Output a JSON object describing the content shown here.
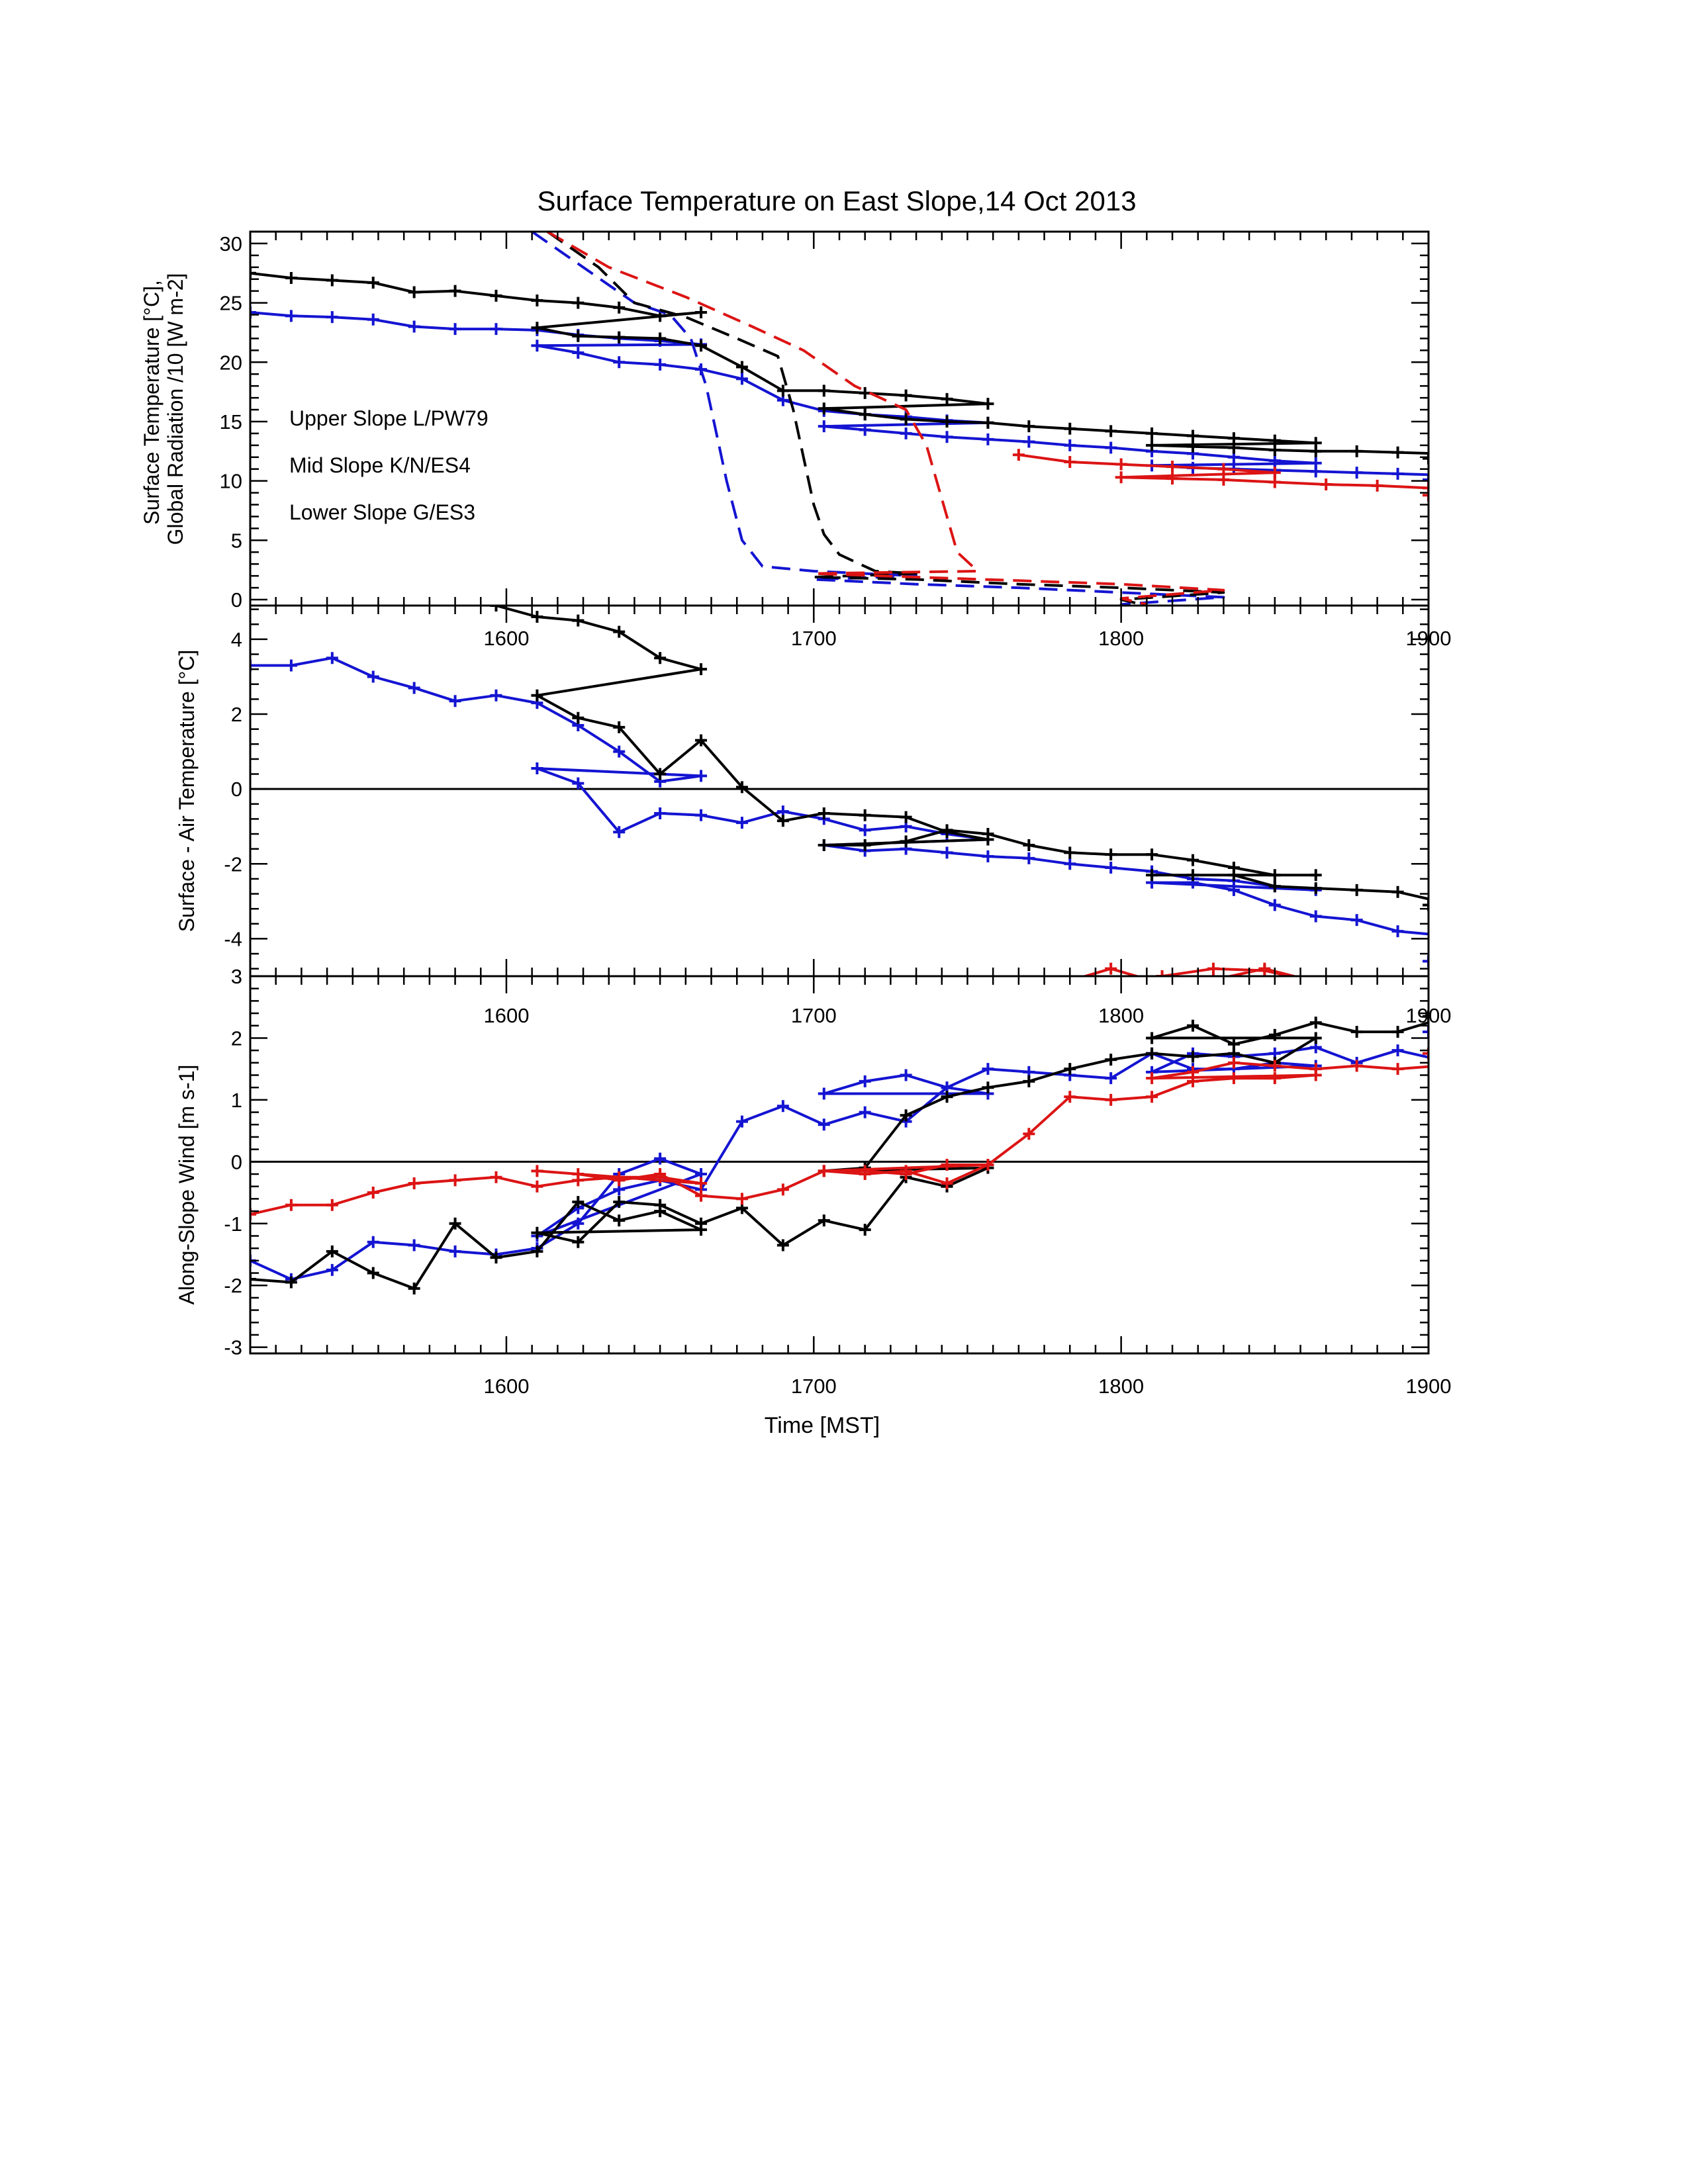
{
  "title": "Surface Temperature on East Slope,14 Oct 2013",
  "colors": {
    "upper": "#1414d2",
    "mid": "#000000",
    "lower": "#dc1414",
    "axis": "#000000"
  },
  "legend": {
    "placement": "left, middle of top panel",
    "items": [
      {
        "key": "upper",
        "label": "Upper Slope L/PW79"
      },
      {
        "key": "mid",
        "label": "Mid Slope K/N/ES4"
      },
      {
        "key": "lower",
        "label": "Lower Slope G/ES3"
      }
    ]
  },
  "xaxis": {
    "label": "Time [MST]",
    "ticks": [
      "1600",
      "1700",
      "1800",
      "1900"
    ]
  },
  "chart_data": [
    {
      "type": "line",
      "panel": "top",
      "ylabel_line1": "Surface Temperature [°C],",
      "ylabel_line2": "Global Radiation /10 [W m-2]",
      "xlim": [
        1510,
        1900
      ],
      "ylim": [
        -0.5,
        31
      ],
      "yticks": [
        "0",
        "5",
        "10",
        "15",
        "20",
        "25",
        "30"
      ],
      "minutes_decimal_note_omitted": true,
      "series": [
        {
          "key": "upper",
          "style": "solid",
          "x": [
            1510,
            1518,
            1526,
            1534,
            1542,
            1550,
            1558,
            1566,
            1574,
            1582,
            1590,
            1598,
            1606,
            1614,
            1622,
            1630,
            1638,
            1646,
            1654,
            1662,
            1670,
            1678,
            1686,
            1694,
            1702,
            1710,
            1718,
            1726,
            1734,
            1742,
            1750,
            1758,
            1766,
            1774,
            1782,
            1790,
            1798,
            1806,
            1814,
            1822,
            1830,
            1838,
            1846,
            1854,
            1862,
            1870,
            1878,
            1886,
            1894,
            1900
          ],
          "y": [
            24.2,
            23.9,
            23.8,
            23.6,
            23.0,
            22.8,
            22.8,
            22.7,
            22.3,
            22.0,
            21.8,
            21.5,
            21.4,
            20.8,
            20.0,
            19.8,
            19.4,
            18.6,
            16.8,
            15.9,
            15.6,
            15.4,
            15.1,
            14.9,
            14.6,
            14.3,
            14.0,
            13.7,
            13.5,
            13.3,
            13.0,
            12.8,
            12.5,
            12.3,
            12.0,
            11.7,
            11.5,
            11.3,
            11.1,
            11.0,
            10.9,
            10.8,
            10.7,
            10.6,
            10.5,
            10.4,
            10.3,
            10.2,
            10.1,
            10.1
          ]
        },
        {
          "key": "mid",
          "style": "solid",
          "x": [
            1510,
            1518,
            1526,
            1534,
            1542,
            1550,
            1558,
            1566,
            1574,
            1582,
            1590,
            1598,
            1606,
            1614,
            1622,
            1630,
            1638,
            1646,
            1654,
            1662,
            1670,
            1678,
            1686,
            1694,
            1702,
            1710,
            1718,
            1726,
            1734,
            1742,
            1750,
            1758,
            1766,
            1774,
            1782,
            1790,
            1798,
            1806,
            1814,
            1822,
            1830,
            1838,
            1846,
            1854,
            1862,
            1870,
            1878,
            1886,
            1894,
            1900
          ],
          "y": [
            27.5,
            27.1,
            26.9,
            26.7,
            25.9,
            26.0,
            25.6,
            25.2,
            25.0,
            24.6,
            23.9,
            24.2,
            22.9,
            22.2,
            22.1,
            22.0,
            21.4,
            19.6,
            17.6,
            17.6,
            17.4,
            17.2,
            16.9,
            16.5,
            16.1,
            15.6,
            15.2,
            15.0,
            14.9,
            14.6,
            14.4,
            14.2,
            14.0,
            13.8,
            13.6,
            13.4,
            13.2,
            13.0,
            12.9,
            12.8,
            12.6,
            12.5,
            12.5,
            12.4,
            12.3,
            12.2,
            12.1,
            12.0,
            11.9,
            11.9
          ]
        },
        {
          "key": "lower",
          "style": "solid",
          "x": [
            1740,
            1750,
            1760,
            1770,
            1780,
            1790,
            1800,
            1810,
            1820,
            1830,
            1840,
            1850,
            1860,
            1870,
            1880,
            1890,
            1900
          ],
          "y": [
            12.2,
            11.6,
            11.4,
            11.2,
            11.0,
            10.7,
            10.3,
            10.2,
            10.1,
            9.9,
            9.7,
            9.6,
            9.4,
            9.3,
            9.2,
            9.0,
            8.8
          ]
        },
        {
          "key": "upper",
          "style": "dashed",
          "x": [
            1605,
            1615,
            1625,
            1632,
            1636,
            1639,
            1641,
            1643,
            1646,
            1650,
            1660,
            1680,
            1700,
            1720,
            1740,
            1760,
            1780,
            1800,
            1805
          ],
          "y": [
            31,
            28,
            25,
            24,
            22,
            18,
            14,
            10,
            5,
            2.8,
            2.4,
            2.0,
            1.7,
            1.3,
            1.0,
            0.6,
            0.2,
            -0.4,
            -0.6
          ]
        },
        {
          "key": "mid",
          "style": "dashed",
          "x": [
            1608,
            1618,
            1625,
            1635,
            1645,
            1653,
            1656,
            1658,
            1660,
            1662,
            1665,
            1672,
            1680,
            1700,
            1720,
            1740,
            1760,
            1780,
            1800,
            1805
          ],
          "y": [
            31,
            28,
            25,
            23.8,
            22,
            20.5,
            16,
            12,
            8,
            5.5,
            3.8,
            2.4,
            2.2,
            1.9,
            1.7,
            1.3,
            1.0,
            0.6,
            0,
            -0.5
          ]
        },
        {
          "key": "lower",
          "style": "dashed",
          "x": [
            1608,
            1620,
            1635,
            1648,
            1658,
            1668,
            1678,
            1682,
            1684,
            1686,
            1688,
            1692,
            1700,
            1720,
            1740,
            1760,
            1780,
            1800,
            1805
          ],
          "y": [
            31,
            28,
            25.5,
            23,
            21,
            18,
            16,
            13,
            10,
            7,
            4,
            2.4,
            2.2,
            1.9,
            1.6,
            1.3,
            0.8,
            0.1,
            -0.4
          ]
        }
      ]
    },
    {
      "type": "line",
      "panel": "middle",
      "ylabel": "Surface - Air Temperature [°C]",
      "xlim": [
        1510,
        1900
      ],
      "ylim": [
        -5,
        4.9
      ],
      "yticks": [
        "-4",
        "-2",
        "0",
        "2",
        "4"
      ],
      "zero_line": true,
      "series": [
        {
          "key": "upper",
          "style": "solid",
          "x": [
            1510,
            1518,
            1526,
            1534,
            1542,
            1550,
            1558,
            1566,
            1574,
            1582,
            1590,
            1598,
            1606,
            1614,
            1622,
            1630,
            1638,
            1646,
            1654,
            1662,
            1670,
            1678,
            1686,
            1694,
            1702,
            1710,
            1718,
            1726,
            1734,
            1742,
            1750,
            1758,
            1766,
            1774,
            1782,
            1790,
            1798,
            1806,
            1814,
            1822,
            1830,
            1838,
            1846,
            1854,
            1862,
            1870,
            1878,
            1886,
            1894,
            1900
          ],
          "y": [
            3.3,
            3.3,
            3.5,
            3.0,
            2.7,
            2.35,
            2.5,
            2.3,
            1.7,
            1.0,
            0.2,
            0.35,
            0.55,
            0.15,
            -1.15,
            -0.65,
            -0.7,
            -0.9,
            -0.6,
            -0.8,
            -1.1,
            -1.0,
            -1.2,
            -1.35,
            -1.5,
            -1.65,
            -1.6,
            -1.7,
            -1.8,
            -1.85,
            -2.0,
            -2.1,
            -2.2,
            -2.4,
            -2.45,
            -2.6,
            -2.7,
            -2.5,
            -2.5,
            -2.7,
            -3.1,
            -3.4,
            -3.5,
            -3.8,
            -3.9,
            -4.1,
            -4.4,
            -4.5,
            -4.6,
            -4.6
          ]
        },
        {
          "key": "mid",
          "style": "solid",
          "x": [
            1548,
            1558,
            1566,
            1574,
            1582,
            1590,
            1598,
            1606,
            1614,
            1622,
            1630,
            1638,
            1646,
            1654,
            1662,
            1670,
            1678,
            1686,
            1694,
            1702,
            1710,
            1718,
            1726,
            1734,
            1742,
            1750,
            1758,
            1766,
            1774,
            1782,
            1790,
            1798,
            1806,
            1814,
            1822,
            1830,
            1838,
            1846,
            1854,
            1862,
            1870,
            1878,
            1886,
            1894,
            1900
          ],
          "y": [
            5.2,
            4.9,
            4.6,
            4.5,
            4.2,
            3.5,
            3.2,
            2.5,
            1.9,
            1.65,
            0.4,
            1.3,
            0.05,
            -0.85,
            -0.65,
            -0.7,
            -0.75,
            -1.15,
            -1.35,
            -1.5,
            -1.5,
            -1.4,
            -1.1,
            -1.2,
            -1.5,
            -1.7,
            -1.75,
            -1.75,
            -1.9,
            -2.1,
            -2.3,
            -2.3,
            -2.3,
            -2.3,
            -2.3,
            -2.6,
            -2.65,
            -2.7,
            -2.75,
            -3.0,
            -2.9,
            -2.9,
            -2.8,
            -3.1,
            -3.1
          ]
        },
        {
          "key": "lower",
          "style": "solid",
          "x": [
            1748,
            1758,
            1768,
            1778,
            1788,
            1798,
            1808,
            1818,
            1828,
            1838
          ],
          "y": [
            -5.2,
            -4.8,
            -5.2,
            -5.1,
            -4.8,
            -5.15,
            -5.0,
            -4.8,
            -4.85,
            -5.15
          ]
        }
      ]
    },
    {
      "type": "line",
      "panel": "bottom",
      "ylabel": "Along-Slope Wind [m s-1]",
      "xlim": [
        1510,
        1900
      ],
      "ylim": [
        -3.1,
        3.0
      ],
      "yticks": [
        "-3",
        "-2",
        "-1",
        "0",
        "1",
        "2",
        "3"
      ],
      "zero_line": true,
      "series": [
        {
          "key": "upper",
          "style": "solid",
          "x": [
            1510,
            1518,
            1526,
            1534,
            1542,
            1550,
            1558,
            1566,
            1574,
            1582,
            1590,
            1598,
            1606,
            1614,
            1622,
            1630,
            1638,
            1646,
            1654,
            1662,
            1670,
            1678,
            1686,
            1694,
            1702,
            1710,
            1718,
            1726,
            1734,
            1742,
            1750,
            1758,
            1766,
            1774,
            1782,
            1790,
            1798,
            1806,
            1814,
            1822,
            1830,
            1838,
            1846,
            1854,
            1862,
            1870,
            1878,
            1886,
            1894,
            1900
          ],
          "y": [
            -1.6,
            -1.9,
            -1.75,
            -1.3,
            -1.35,
            -1.45,
            -1.5,
            -1.4,
            -1.0,
            -0.2,
            0.05,
            -0.2,
            -1.2,
            -0.75,
            -0.45,
            -0.3,
            -0.45,
            0.65,
            0.9,
            0.6,
            0.8,
            0.65,
            1.2,
            1.1,
            1.1,
            1.3,
            1.4,
            1.2,
            1.5,
            1.45,
            1.4,
            1.35,
            1.75,
            1.5,
            1.5,
            1.6,
            1.55,
            1.45,
            1.75,
            1.7,
            1.75,
            1.85,
            1.6,
            1.8,
            1.65,
            1.45,
            1.7,
            2.0,
            2.1,
            2.1
          ]
        },
        {
          "key": "mid",
          "style": "solid",
          "x": [
            1510,
            1518,
            1526,
            1534,
            1542,
            1550,
            1558,
            1566,
            1574,
            1582,
            1590,
            1598,
            1606,
            1614,
            1622,
            1630,
            1638,
            1646,
            1654,
            1662,
            1670,
            1678,
            1686,
            1694,
            1702,
            1710,
            1718,
            1726,
            1734,
            1742,
            1750,
            1758,
            1766,
            1774,
            1782,
            1790,
            1798,
            1806,
            1814,
            1822,
            1830,
            1838,
            1846,
            1854,
            1862,
            1870,
            1878,
            1886,
            1894,
            1900
          ],
          "y": [
            -1.9,
            -1.95,
            -1.45,
            -1.8,
            -2.05,
            -1.0,
            -1.55,
            -1.45,
            -0.65,
            -0.95,
            -0.8,
            -1.1,
            -1.15,
            -1.3,
            -0.65,
            -0.7,
            -1.0,
            -0.75,
            -1.35,
            -0.95,
            -1.1,
            -0.25,
            -0.4,
            -0.1,
            -0.15,
            -0.1,
            0.75,
            1.05,
            1.2,
            1.3,
            1.5,
            1.65,
            1.75,
            1.7,
            1.75,
            1.6,
            2.0,
            2.0,
            2.2,
            1.9,
            2.05,
            2.25,
            2.1,
            2.1,
            2.3,
            1.95,
            2.15,
            1.75,
            2.0,
            2.35
          ]
        },
        {
          "key": "lower",
          "style": "solid",
          "x": [
            1510,
            1518,
            1526,
            1534,
            1542,
            1550,
            1558,
            1566,
            1574,
            1582,
            1590,
            1598,
            1606,
            1614,
            1622,
            1630,
            1638,
            1646,
            1654,
            1662,
            1670,
            1678,
            1686,
            1694,
            1702,
            1710,
            1718,
            1726,
            1734,
            1742,
            1750,
            1758,
            1766,
            1774,
            1782,
            1790,
            1798,
            1806,
            1814,
            1822,
            1830,
            1838,
            1846,
            1854,
            1862,
            1870,
            1878,
            1886,
            1894,
            1900
          ],
          "y": [
            -0.85,
            -0.7,
            -0.7,
            -0.5,
            -0.35,
            -0.3,
            -0.25,
            -0.4,
            -0.3,
            -0.25,
            -0.25,
            -0.35,
            -0.15,
            -0.2,
            -0.3,
            -0.2,
            -0.55,
            -0.6,
            -0.45,
            -0.15,
            -0.2,
            -0.15,
            -0.35,
            -0.05,
            -0.15,
            -0.15,
            -0.2,
            -0.05,
            -0.05,
            0.45,
            1.05,
            1.0,
            1.05,
            1.3,
            1.35,
            1.35,
            1.4,
            1.35,
            1.45,
            1.6,
            1.55,
            1.5,
            1.55,
            1.5,
            1.55,
            1.55,
            1.55,
            1.5,
            1.7,
            1.75
          ]
        }
      ]
    }
  ]
}
